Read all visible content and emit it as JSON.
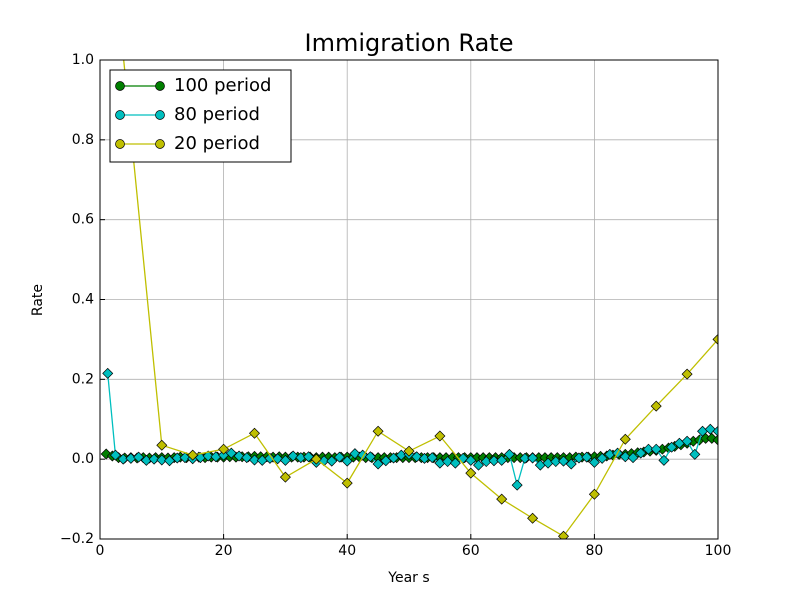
{
  "chart_data": {
    "type": "line",
    "title": "Immigration Rate",
    "xlabel": "Year s",
    "ylabel": "Rate",
    "xlim": [
      0,
      100
    ],
    "ylim": [
      -0.2,
      1.0
    ],
    "xticks": [
      0,
      20,
      40,
      60,
      80,
      100
    ],
    "yticks": [
      {
        "value": -0.2,
        "label": "−0.2"
      },
      {
        "value": 0,
        "label": "0.0"
      },
      {
        "value": 0.2,
        "label": "0.2"
      },
      {
        "value": 0.4,
        "label": "0.4"
      },
      {
        "value": 0.6,
        "label": "0.6"
      },
      {
        "value": 0.8,
        "label": "0.8"
      },
      {
        "value": 1,
        "label": "1.0"
      }
    ],
    "grid": true,
    "legend_loc": "upper left",
    "series": [
      {
        "name": "100 period",
        "color": "#007f00",
        "x": [
          1,
          2,
          3,
          4,
          5,
          6,
          7,
          8,
          9,
          10,
          11,
          12,
          13,
          14,
          15,
          16,
          17,
          18,
          19,
          20,
          21,
          22,
          23,
          24,
          25,
          26,
          27,
          28,
          29,
          30,
          31,
          32,
          33,
          34,
          35,
          36,
          37,
          38,
          39,
          40,
          41,
          42,
          43,
          44,
          45,
          46,
          47,
          48,
          49,
          50,
          51,
          52,
          53,
          54,
          55,
          56,
          57,
          58,
          59,
          60,
          61,
          62,
          63,
          64,
          65,
          66,
          67,
          68,
          69,
          70,
          71,
          72,
          73,
          74,
          75,
          76,
          77,
          78,
          79,
          80,
          81,
          82,
          83,
          84,
          85,
          86,
          87,
          88,
          89,
          90,
          91,
          92,
          93,
          94,
          95,
          96,
          97,
          98,
          99,
          100
        ],
        "values": [
          0.013,
          0.008,
          0.004,
          0.003,
          0.004,
          0.003,
          0.004,
          0.003,
          0.004,
          0.004,
          0.003,
          0.004,
          0.005,
          0.004,
          0.004,
          0.005,
          0.004,
          0.005,
          0.005,
          0.005,
          0.006,
          0.005,
          0.006,
          0.006,
          0.007,
          0.006,
          0.006,
          0.005,
          0.006,
          0.005,
          0.005,
          0.005,
          0.005,
          0.005,
          0.004,
          0.005,
          0.005,
          0.004,
          0.005,
          0.005,
          0.005,
          0.005,
          0.004,
          0.004,
          0.004,
          0.004,
          0.004,
          0.004,
          0.004,
          0.004,
          0.004,
          0.004,
          0.004,
          0.004,
          0.004,
          0.004,
          0.004,
          0.004,
          0.004,
          0.004,
          0.004,
          0.004,
          0.004,
          0.004,
          0.004,
          0.004,
          0.004,
          0.004,
          0.004,
          0.004,
          0.004,
          0.004,
          0.004,
          0.004,
          0.004,
          0.004,
          0.005,
          0.005,
          0.005,
          0.006,
          0.007,
          0.008,
          0.01,
          0.012,
          0.012,
          0.014,
          0.016,
          0.018,
          0.02,
          0.022,
          0.025,
          0.028,
          0.032,
          0.036,
          0.04,
          0.045,
          0.048,
          0.052,
          0.052,
          0.048
        ]
      },
      {
        "name": "80 period",
        "color": "#00bfbf",
        "x": [
          1.25,
          2.5,
          3.75,
          5,
          6.25,
          7.5,
          8.75,
          10,
          11.25,
          12.5,
          13.75,
          15,
          16.25,
          17.5,
          18.75,
          20,
          21.25,
          22.5,
          23.75,
          25,
          26.25,
          27.5,
          28.75,
          30,
          31.25,
          32.5,
          33.75,
          35,
          36.25,
          37.5,
          38.75,
          40,
          41.25,
          42.5,
          43.75,
          45,
          46.25,
          47.5,
          48.75,
          50,
          51.25,
          52.5,
          53.75,
          55,
          56.25,
          57.5,
          58.75,
          60,
          61.25,
          62.5,
          63.75,
          65,
          66.25,
          67.5,
          68.75,
          70,
          71.25,
          72.5,
          73.75,
          75,
          76.25,
          77.5,
          78.75,
          80,
          81.25,
          82.5,
          83.75,
          85,
          86.25,
          87.5,
          88.75,
          90,
          91.25,
          92.5,
          93.75,
          95,
          96.25,
          97.5,
          98.75,
          100
        ],
        "values": [
          0.215,
          0.01,
          0,
          0.002,
          0.005,
          -0.003,
          0,
          -0.002,
          -0.004,
          0.003,
          0.004,
          0.001,
          0.004,
          0.008,
          0.006,
          0.01,
          0.015,
          0.008,
          0.004,
          -0.002,
          -0.003,
          0.002,
          0.001,
          -0.003,
          0.008,
          0.004,
          0.006,
          -0.008,
          -0.004,
          -0.005,
          0.005,
          -0.005,
          0.014,
          0.01,
          0.006,
          -0.012,
          -0.004,
          0.003,
          0.01,
          0.012,
          0.006,
          0.002,
          0.004,
          -0.01,
          -0.006,
          -0.01,
          0.002,
          -0.003,
          -0.015,
          -0.006,
          -0.004,
          -0.003,
          0.012,
          -0.065,
          0.002,
          0.003,
          -0.015,
          -0.01,
          -0.006,
          -0.005,
          -0.012,
          0.003,
          0.005,
          -0.008,
          0.002,
          0.012,
          0.015,
          0.006,
          0.004,
          0.015,
          0.025,
          0.025,
          -0.003,
          0.03,
          0.04,
          0.045,
          0.012,
          0.07,
          0.075,
          0.07
        ]
      },
      {
        "name": "20 period",
        "color": "#bfbf00",
        "x": [
          0,
          10,
          15,
          20,
          25,
          30,
          35,
          40,
          45,
          50,
          55,
          60,
          65,
          70,
          75,
          80,
          85,
          90,
          95,
          100
        ],
        "values": [
          1.6,
          0.035,
          0.01,
          0.025,
          0.065,
          -0.045,
          0,
          -0.06,
          0.07,
          0.02,
          0.058,
          -0.035,
          -0.1,
          -0.148,
          -0.193,
          -0.088,
          0.05,
          0.133,
          0.213,
          0.3
        ]
      }
    ]
  }
}
